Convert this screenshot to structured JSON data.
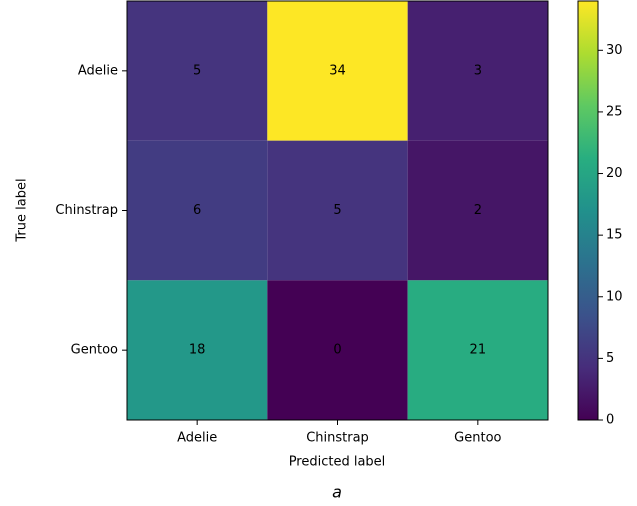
{
  "chart_data": {
    "type": "heatmap",
    "x_label": "Predicted label",
    "y_label": "True label",
    "x_categories": [
      "Adelie",
      "Chinstrap",
      "Gentoo"
    ],
    "y_categories": [
      "Adelie",
      "Chinstrap",
      "Gentoo"
    ],
    "values": [
      [
        5,
        34,
        3
      ],
      [
        6,
        5,
        2
      ],
      [
        18,
        0,
        21
      ]
    ],
    "colormap": "viridis",
    "clim": [
      0,
      34
    ],
    "cticks": [
      0,
      5,
      10,
      15,
      20,
      25,
      30
    ],
    "caption": "a"
  }
}
